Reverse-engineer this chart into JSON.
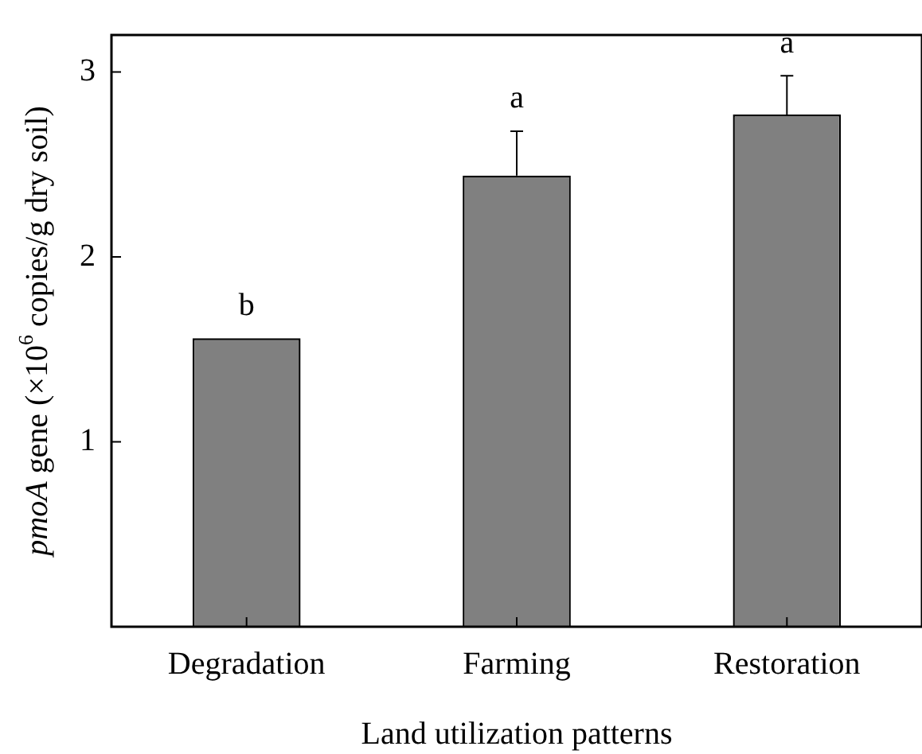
{
  "chart_data": {
    "type": "bar",
    "xlabel": "Land utilization patterns",
    "ylabel": "pmoA gene (×10$^{6}$ copies/g dry soil)",
    "categories": [
      "Degradation",
      "Farming",
      "Restoration"
    ],
    "values": [
      1.56,
      2.44,
      2.77
    ],
    "errors": [
      null,
      [
        2.44,
        2.68
      ],
      [
        2.77,
        2.98
      ]
    ],
    "color": "#808080",
    "ylim": [
      0,
      3.2
    ],
    "yticks": [
      {
        "value": 0,
        "label": null
      },
      1,
      2,
      3
    ],
    "annotations": [
      "b",
      "a",
      "a"
    ],
    "grid": false,
    "legend": false
  }
}
